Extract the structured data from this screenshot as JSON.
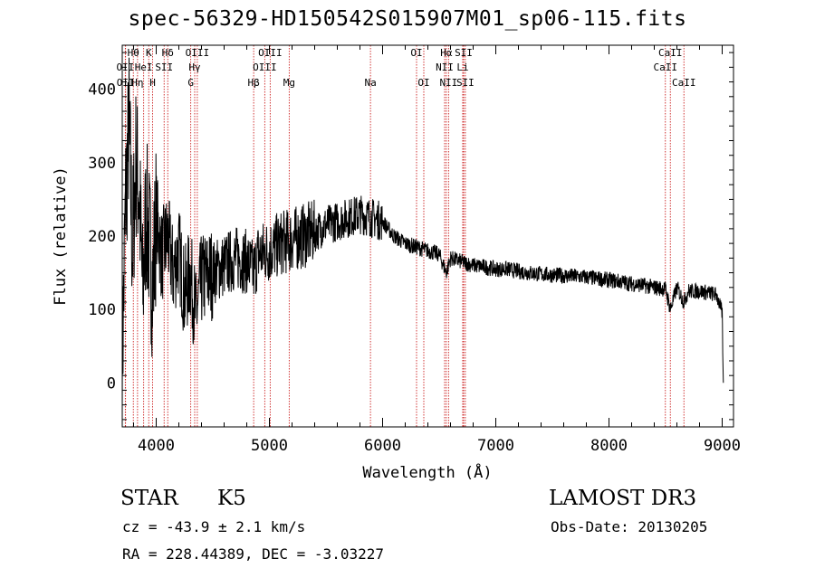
{
  "header": {
    "title": "spec-56329-HD150542S015907M01_sp06-115.fits"
  },
  "info": {
    "obj_class": "STAR",
    "obj_subclass": "K5",
    "survey": "LAMOST DR3",
    "cz": "cz = -43.9 ± 2.1 km/s",
    "obs_date": "Obs-Date: 20130205",
    "radec": "RA = 228.44389, DEC =  -3.03227"
  },
  "colors": {
    "line_marker": "#cc2222",
    "spectrum": "#000000",
    "axis": "#000000"
  },
  "chart_data": {
    "type": "line",
    "title": "spec-56329-HD150542S015907M01_sp06-115.fits",
    "xlabel": "Wavelength (Å)",
    "ylabel": "Flux (relative)",
    "xlim": [
      3700,
      9100
    ],
    "ylim": [
      -60,
      460
    ],
    "x_ticks": [
      4000,
      5000,
      6000,
      7000,
      8000,
      9000
    ],
    "y_ticks": [
      0,
      100,
      200,
      300,
      400
    ],
    "series": [
      {
        "name": "spectrum",
        "x": [
          3700,
          3730,
          3760,
          3790,
          3820,
          3850,
          3880,
          3910,
          3940,
          3970,
          4000,
          4050,
          4100,
          4150,
          4200,
          4250,
          4300,
          4350,
          4400,
          4500,
          4600,
          4700,
          4800,
          4860,
          4900,
          5000,
          5100,
          5200,
          5300,
          5400,
          5500,
          5600,
          5700,
          5800,
          5900,
          6000,
          6100,
          6200,
          6300,
          6400,
          6500,
          6563,
          6600,
          6700,
          6800,
          6900,
          7000,
          7100,
          7200,
          7300,
          7400,
          7500,
          7600,
          7700,
          7800,
          7900,
          8000,
          8100,
          8200,
          8300,
          8400,
          8500,
          8542,
          8600,
          8662,
          8700,
          8800,
          8900,
          8950,
          9000,
          9010
        ],
        "values": [
          20,
          250,
          350,
          180,
          300,
          260,
          120,
          230,
          190,
          130,
          230,
          170,
          200,
          150,
          180,
          120,
          150,
          90,
          140,
          150,
          160,
          170,
          165,
          150,
          175,
          180,
          190,
          195,
          200,
          205,
          215,
          220,
          225,
          230,
          225,
          220,
          200,
          190,
          185,
          180,
          175,
          150,
          170,
          165,
          160,
          158,
          155,
          155,
          152,
          150,
          148,
          147,
          146,
          145,
          144,
          142,
          140,
          138,
          135,
          133,
          130,
          128,
          100,
          130,
          110,
          125,
          125,
          122,
          120,
          95,
          0
        ]
      }
    ],
    "line_markers": [
      {
        "label": "Hθ",
        "x": 3798,
        "row": 0
      },
      {
        "label": "K",
        "x": 3934,
        "row": 0
      },
      {
        "label": "Hδ",
        "x": 4102,
        "row": 0
      },
      {
        "label": "OIII",
        "x": 4363,
        "row": 0
      },
      {
        "label": "OIII",
        "x": 5007,
        "row": 0
      },
      {
        "label": "OI",
        "x": 6300,
        "row": 0
      },
      {
        "label": "Hα",
        "x": 6563,
        "row": 0
      },
      {
        "label": "SII",
        "x": 6716,
        "row": 0
      },
      {
        "label": "CaII",
        "x": 8542,
        "row": 0
      },
      {
        "label": "OII",
        "x": 3727,
        "row": 1
      },
      {
        "label": "HeI",
        "x": 3889,
        "row": 1
      },
      {
        "label": "SII",
        "x": 4070,
        "row": 1
      },
      {
        "label": "Hγ",
        "x": 4340,
        "row": 1
      },
      {
        "label": "OIII",
        "x": 4959,
        "row": 1
      },
      {
        "label": "NII",
        "x": 6548,
        "row": 1
      },
      {
        "label": "Li",
        "x": 6708,
        "row": 1
      },
      {
        "label": "CaII",
        "x": 8498,
        "row": 1
      },
      {
        "label": "OII",
        "x": 3729,
        "row": 2
      },
      {
        "label": "Hη",
        "x": 3835,
        "row": 2
      },
      {
        "label": "H",
        "x": 3968,
        "row": 2
      },
      {
        "label": "G",
        "x": 4305,
        "row": 2
      },
      {
        "label": "Hβ",
        "x": 4861,
        "row": 2
      },
      {
        "label": "Mg",
        "x": 5175,
        "row": 2
      },
      {
        "label": "Na",
        "x": 5893,
        "row": 2
      },
      {
        "label": "OI",
        "x": 6364,
        "row": 2
      },
      {
        "label": "NII",
        "x": 6583,
        "row": 2
      },
      {
        "label": "SII",
        "x": 6731,
        "row": 2
      },
      {
        "label": "CaII",
        "x": 8662,
        "row": 2
      }
    ]
  }
}
